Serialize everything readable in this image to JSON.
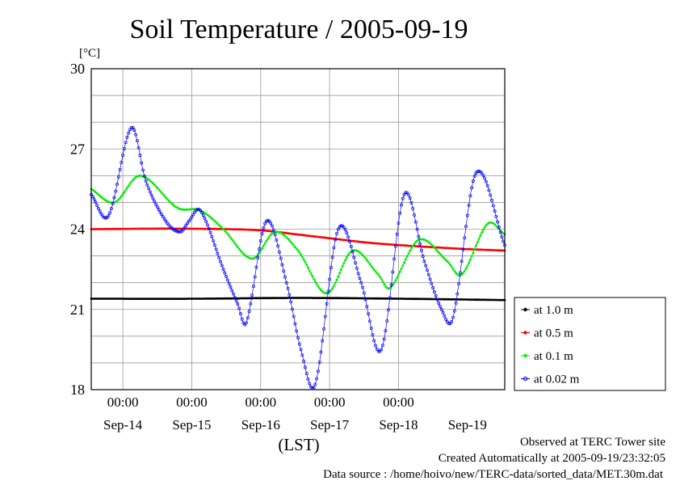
{
  "chart_data": {
    "type": "line",
    "title": "Soil Temperature / 2005-09-19",
    "ylabel": "[°C]",
    "xlabel": "(LST)",
    "ylim": [
      18,
      30
    ],
    "xlim": [
      0,
      144
    ],
    "x_unit": "hours since 2005-09-13 13:00 LST",
    "yticks": [
      18,
      21,
      24,
      27,
      30
    ],
    "y_minor_step": 1,
    "time_ticks": [
      {
        "x": 11,
        "label": "00:00"
      },
      {
        "x": 35,
        "label": "00:00"
      },
      {
        "x": 59,
        "label": "00:00"
      },
      {
        "x": 83,
        "label": "00:00"
      },
      {
        "x": 107,
        "label": "00:00"
      }
    ],
    "date_labels": [
      {
        "x": 11,
        "label": "Sep-14"
      },
      {
        "x": 35,
        "label": "Sep-15"
      },
      {
        "x": 59,
        "label": "Sep-16"
      },
      {
        "x": 83,
        "label": "Sep-17"
      },
      {
        "x": 107,
        "label": "Sep-18"
      },
      {
        "x": 131,
        "label": "Sep-19"
      }
    ],
    "grid": true,
    "legend_position": "right",
    "series": [
      {
        "name": "at 1.0 m",
        "color": "#000000",
        "marker": "dot",
        "points": [
          [
            0,
            21.4
          ],
          [
            36,
            21.4
          ],
          [
            72,
            21.43
          ],
          [
            108,
            21.4
          ],
          [
            144,
            21.35
          ]
        ]
      },
      {
        "name": "at 0.5 m",
        "color": "#ff0000",
        "marker": "dot",
        "points": [
          [
            0,
            24.0
          ],
          [
            24,
            24.02
          ],
          [
            48,
            24.0
          ],
          [
            60,
            23.95
          ],
          [
            72,
            23.8
          ],
          [
            84,
            23.65
          ],
          [
            96,
            23.5
          ],
          [
            108,
            23.4
          ],
          [
            120,
            23.32
          ],
          [
            132,
            23.25
          ],
          [
            144,
            23.2
          ]
        ]
      },
      {
        "name": "at 0.1 m",
        "color": "#00ee00",
        "marker": "dot",
        "points": [
          [
            0,
            25.5
          ],
          [
            8,
            25.0
          ],
          [
            17,
            26.0
          ],
          [
            30,
            24.8
          ],
          [
            38,
            24.7
          ],
          [
            46,
            24.0
          ],
          [
            56,
            22.9
          ],
          [
            64,
            23.9
          ],
          [
            72,
            23.2
          ],
          [
            82,
            21.6
          ],
          [
            91,
            23.2
          ],
          [
            100,
            22.3
          ],
          [
            104,
            21.8
          ],
          [
            114,
            23.6
          ],
          [
            124,
            22.8
          ],
          [
            129,
            22.3
          ],
          [
            138,
            24.2
          ],
          [
            144,
            23.8
          ]
        ]
      },
      {
        "name": "at 0.02 m",
        "color": "#0000ff",
        "marker": "circle",
        "points": [
          [
            0,
            25.3
          ],
          [
            6,
            24.5
          ],
          [
            14,
            27.8
          ],
          [
            19,
            25.8
          ],
          [
            26,
            24.3
          ],
          [
            31,
            23.9
          ],
          [
            34,
            24.3
          ],
          [
            38,
            24.7
          ],
          [
            46,
            22.5
          ],
          [
            51,
            21.2
          ],
          [
            54,
            20.5
          ],
          [
            61,
            24.3
          ],
          [
            68,
            22.0
          ],
          [
            73,
            19.5
          ],
          [
            78,
            18.2
          ],
          [
            86,
            24.0
          ],
          [
            94,
            22.0
          ],
          [
            101,
            19.5
          ],
          [
            109,
            25.3
          ],
          [
            116,
            22.8
          ],
          [
            122,
            21.0
          ],
          [
            126,
            20.7
          ],
          [
            134,
            26.1
          ],
          [
            144,
            23.4
          ]
        ]
      }
    ]
  },
  "footer": {
    "line1": "Observed at TERC Tower site",
    "line2": "Created Automatically at 2005-09-19/23:32:05",
    "line3": "Data source : /home/hoivo/new/TERC-data/sorted_data/MET.30m.dat"
  }
}
